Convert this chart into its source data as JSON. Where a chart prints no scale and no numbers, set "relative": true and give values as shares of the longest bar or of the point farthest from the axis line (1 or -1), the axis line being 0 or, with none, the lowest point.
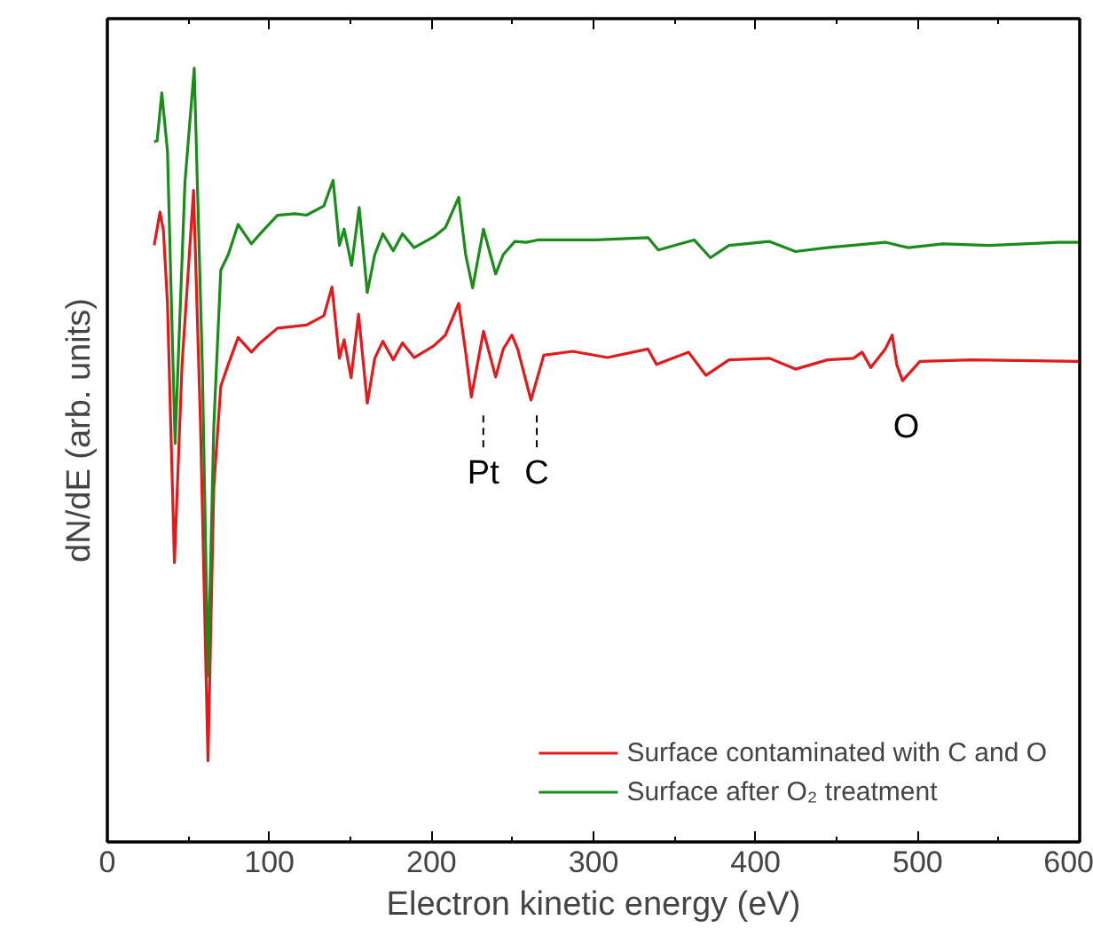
{
  "chart_data": {
    "type": "line",
    "xlabel": "Electron kinetic energy (eV)",
    "ylabel": "dN/dE (arb. units)",
    "relative": true,
    "xlim": [
      0,
      600
    ],
    "xticks": [
      0,
      100,
      200,
      300,
      400,
      500,
      600
    ],
    "legend": "bottom right",
    "grid": false,
    "marker": "none",
    "line_style": "solid",
    "series": [
      {
        "name": "Surface contaminated with C and O",
        "color": "#e31a1c",
        "x": [
          28.9,
          32.5,
          34.6,
          37.1,
          41.4,
          46.1,
          53.2,
          57.5,
          62.1,
          65.7,
          70.0,
          74.6,
          80.7,
          88.9,
          94.3,
          105.0,
          122.9,
          133.6,
          138.6,
          143.2,
          146.1,
          150.4,
          155.0,
          160.4,
          165.0,
          170.0,
          176.4,
          182.1,
          189.3,
          201.4,
          208.6,
          216.8,
          221.1,
          224.6,
          232.1,
          239.6,
          244.3,
          249.6,
          253.2,
          261.4,
          269.3,
          287.1,
          308.6,
          333.6,
          338.9,
          358.6,
          369.3,
          383.6,
          408.6,
          424.6,
          444.3,
          460.4,
          465.7,
          471.1,
          480.0,
          484.3,
          487.1,
          490.7,
          501.4,
          533.6,
          600.0
        ],
        "values": [
          0.771,
          0.814,
          0.79,
          0.696,
          0.361,
          0.617,
          0.842,
          0.538,
          0.105,
          0.459,
          0.589,
          0.617,
          0.652,
          0.633,
          0.645,
          0.664,
          0.668,
          0.68,
          0.717,
          0.625,
          0.649,
          0.6,
          0.682,
          0.567,
          0.625,
          0.647,
          0.623,
          0.645,
          0.626,
          0.641,
          0.655,
          0.696,
          0.633,
          0.575,
          0.66,
          0.601,
          0.637,
          0.655,
          0.637,
          0.571,
          0.629,
          0.634,
          0.626,
          0.637,
          0.617,
          0.633,
          0.603,
          0.623,
          0.625,
          0.611,
          0.623,
          0.625,
          0.633,
          0.613,
          0.637,
          0.655,
          0.617,
          0.596,
          0.621,
          0.623,
          0.621
        ]
      },
      {
        "name": "Surface after O₂ treatment",
        "color": "#1a8c1a",
        "x": [
          28.9,
          30.7,
          33.6,
          37.1,
          41.8,
          47.9,
          53.6,
          58.6,
          62.1,
          65.7,
          70.0,
          74.6,
          80.7,
          88.9,
          94.3,
          105.0,
          115.7,
          122.9,
          133.6,
          139.3,
          143.2,
          146.1,
          150.7,
          155.4,
          160.4,
          165.0,
          170.0,
          176.4,
          182.1,
          189.3,
          201.4,
          208.6,
          216.8,
          221.1,
          225.4,
          232.1,
          239.6,
          244.3,
          251.4,
          258.6,
          265.7,
          301.4,
          333.6,
          340.0,
          362.1,
          372.1,
          383.6,
          408.6,
          424.6,
          444.3,
          480.0,
          494.3,
          515.7,
          544.3,
          587.1,
          600.0
        ],
        "values": [
          0.905,
          0.906,
          0.968,
          0.893,
          0.515,
          0.853,
          1.0,
          0.617,
          0.215,
          0.538,
          0.739,
          0.759,
          0.798,
          0.773,
          0.786,
          0.81,
          0.812,
          0.81,
          0.822,
          0.855,
          0.771,
          0.792,
          0.745,
          0.82,
          0.71,
          0.759,
          0.786,
          0.764,
          0.786,
          0.768,
          0.782,
          0.794,
          0.833,
          0.759,
          0.716,
          0.792,
          0.734,
          0.759,
          0.776,
          0.775,
          0.778,
          0.778,
          0.781,
          0.765,
          0.778,
          0.755,
          0.771,
          0.776,
          0.763,
          0.768,
          0.775,
          0.768,
          0.773,
          0.771,
          0.775,
          0.775
        ]
      }
    ],
    "annotations": [
      "Pt",
      "C",
      "O"
    ]
  }
}
